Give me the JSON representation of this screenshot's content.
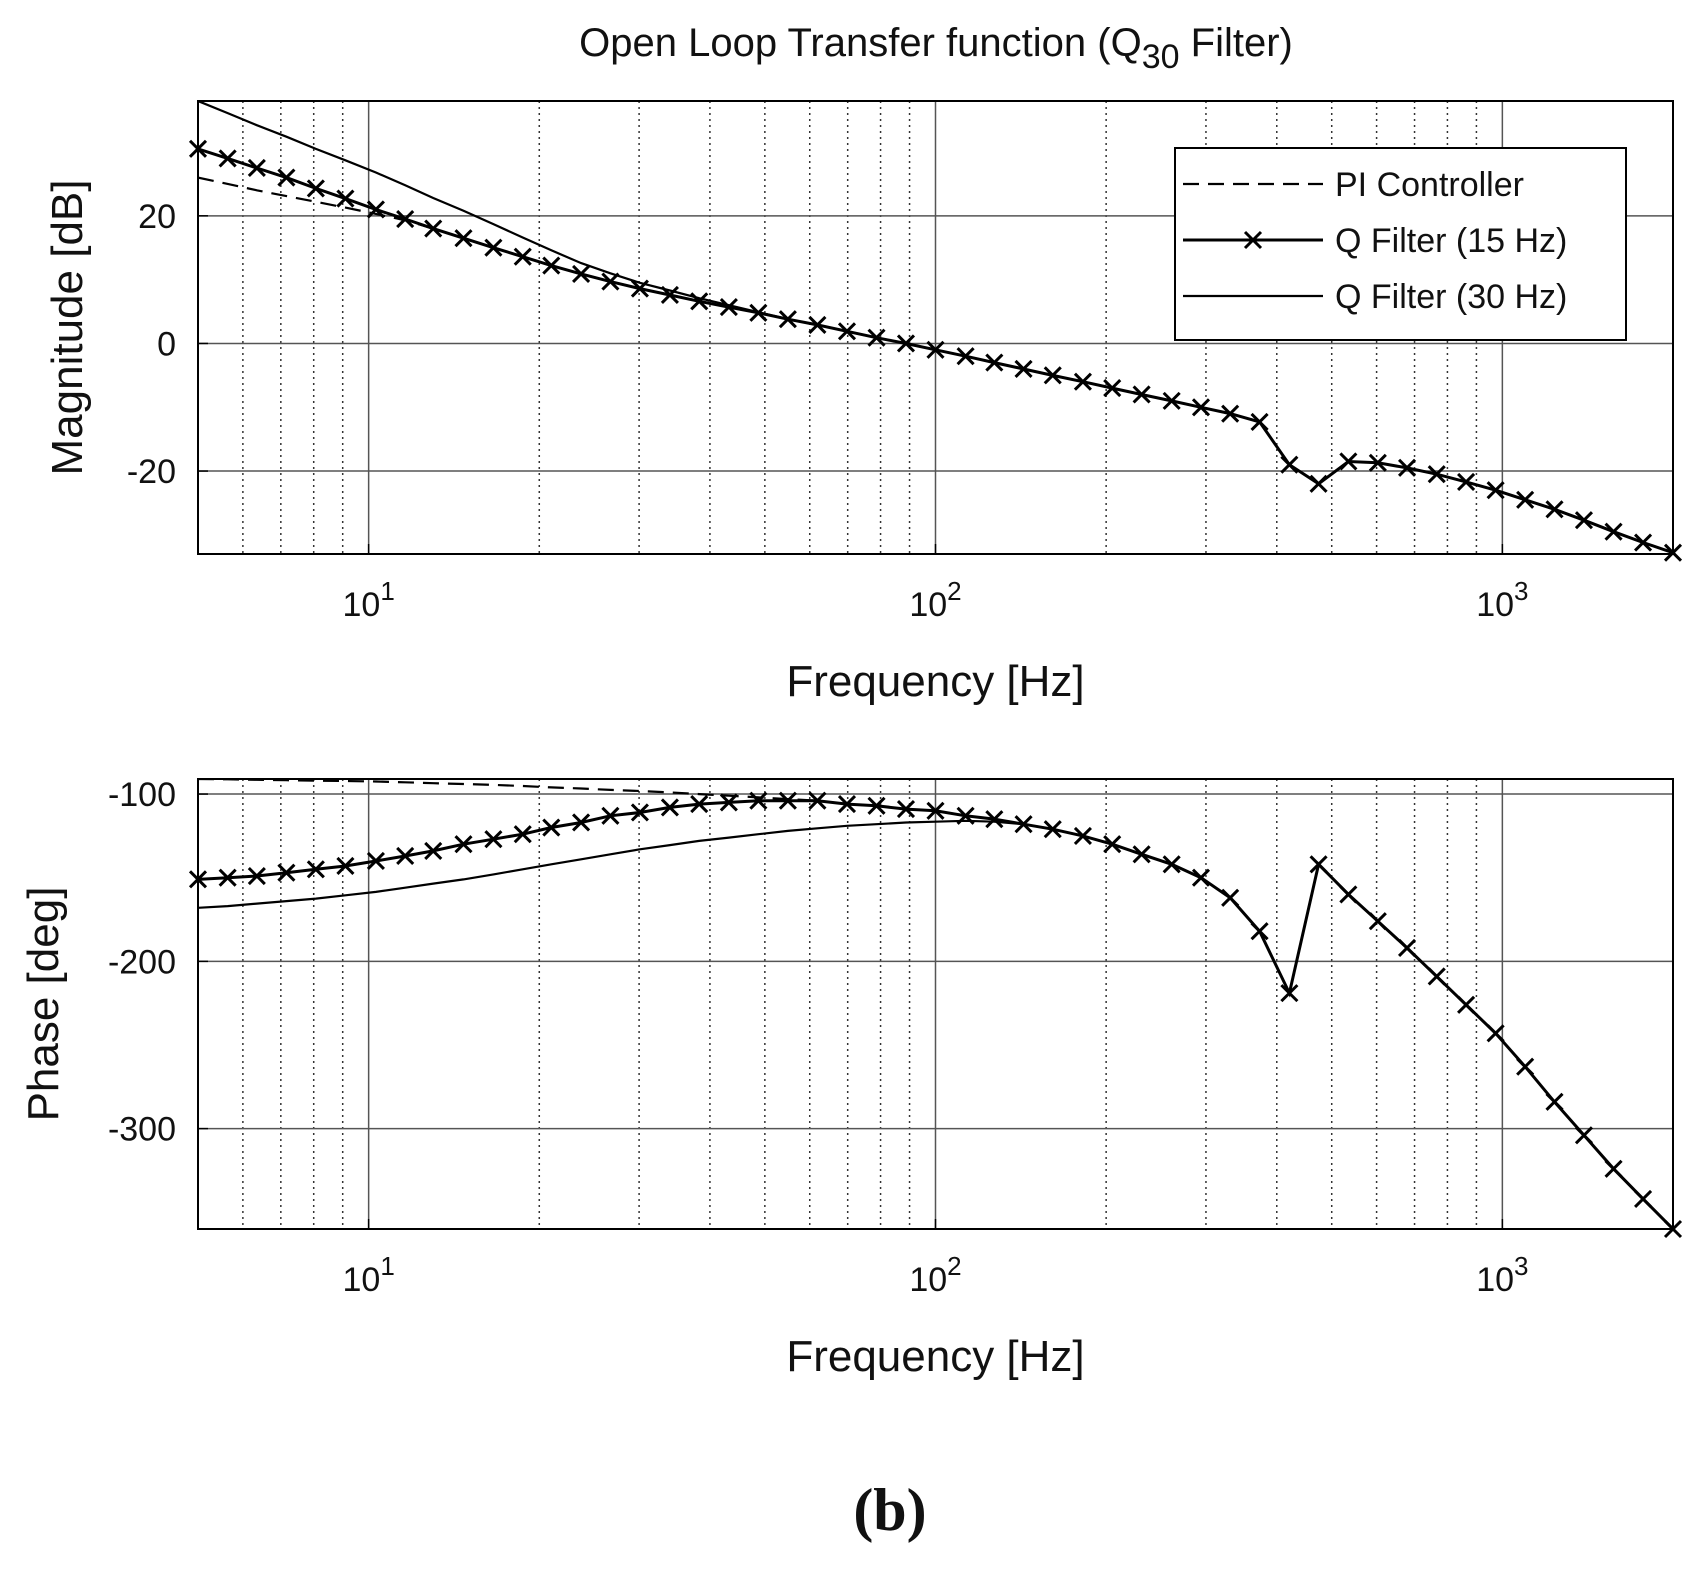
{
  "caption": "(b)",
  "chart_data": [
    {
      "type": "line",
      "title_parts": [
        "Open Loop Transfer function (Q",
        "30",
        " Filter)"
      ],
      "xlabel": "Frequency [Hz]",
      "ylabel": "Magnitude [dB]",
      "xscale": "log",
      "grid": true,
      "legend": "northeast",
      "xlim": [
        5,
        2000
      ],
      "ylim": [
        -33,
        38
      ],
      "xticks": [
        {
          "value": 10,
          "label": "10",
          "sup": "1"
        },
        {
          "value": 100,
          "label": "10",
          "sup": "2"
        },
        {
          "value": 1000,
          "label": "10",
          "sup": "3"
        }
      ],
      "xminor": [
        6,
        7,
        8,
        9,
        20,
        30,
        40,
        50,
        60,
        70,
        80,
        90,
        200,
        300,
        400,
        500,
        600,
        700,
        800,
        900
      ],
      "yticks": [
        -20,
        0,
        20
      ],
      "x": [
        5,
        5.64,
        6.35,
        7.16,
        8.07,
        9.1,
        10.3,
        11.6,
        13.0,
        14.7,
        16.6,
        18.7,
        21.0,
        23.7,
        26.7,
        30.1,
        34.0,
        38.3,
        43.2,
        48.7,
        54.9,
        61.9,
        69.8,
        78.7,
        88.7,
        100,
        113,
        127,
        143,
        161,
        182,
        205,
        231,
        261,
        294,
        331,
        373,
        421,
        474,
        535,
        603,
        679,
        766,
        863,
        973,
        1097,
        1236,
        1393,
        1571,
        1771,
        2000
      ],
      "series": [
        {
          "name": "PI Controller",
          "color": "#000000",
          "style": "dashed",
          "values": [
            26,
            25,
            24,
            23.1,
            22.2,
            21.3,
            20.3,
            19.3,
            18,
            16.5,
            15,
            13.6,
            12.2,
            10.9,
            9.7,
            8.6,
            7.6,
            6.6,
            5.7,
            4.8,
            3.8,
            2.9,
            1.9,
            0.9,
            0,
            -1,
            -2,
            -3,
            -4,
            -5,
            -6,
            -7,
            -8,
            -9,
            -10,
            -11,
            -12.3,
            -19,
            -22,
            -18.5,
            -18.7,
            -19.5,
            -20.5,
            -21.7,
            -23,
            -24.5,
            -26,
            -27.7,
            -29.5,
            -31.2,
            -32.8
          ]
        },
        {
          "name": "Q Filter (30 Hz)",
          "color": "#000000",
          "style": "solid",
          "values": [
            38,
            36.1,
            34.2,
            32.4,
            30.5,
            28.7,
            26.8,
            24.8,
            22.8,
            20.8,
            18.7,
            16.6,
            14.6,
            12.6,
            11,
            9.5,
            8.3,
            7.1,
            6,
            4.9,
            3.8,
            2.9,
            1.9,
            0.9,
            0,
            -1,
            -2,
            -3,
            -4,
            -5,
            -6,
            -7,
            -8,
            -9,
            -10,
            -11,
            -12.3,
            -19,
            -22,
            -18.5,
            -18.7,
            -19.5,
            -20.5,
            -21.7,
            -23,
            -24.5,
            -26,
            -27.7,
            -29.5,
            -31.2,
            -32.8
          ]
        },
        {
          "name": "Q Filter (15 Hz)",
          "color": "#000000",
          "style": "solid",
          "marker": "x",
          "values": [
            30.5,
            29,
            27.5,
            26,
            24.3,
            22.7,
            21,
            19.5,
            18,
            16.5,
            15,
            13.6,
            12.2,
            10.9,
            9.7,
            8.6,
            7.6,
            6.6,
            5.7,
            4.8,
            3.8,
            2.9,
            1.9,
            0.9,
            0,
            -1,
            -2,
            -3,
            -4,
            -5,
            -6,
            -7,
            -8,
            -9,
            -10,
            -11,
            -12.3,
            -19,
            -22,
            -18.5,
            -18.7,
            -19.5,
            -20.5,
            -21.7,
            -23,
            -24.5,
            -26,
            -27.7,
            -29.5,
            -31.2,
            -32.8
          ]
        }
      ]
    },
    {
      "type": "line",
      "xlabel": "Frequency [Hz]",
      "ylabel": "Phase [deg]",
      "xscale": "log",
      "grid": true,
      "xlim": [
        5,
        2000
      ],
      "ylim": [
        -360,
        -91
      ],
      "xticks": [
        {
          "value": 10,
          "label": "10",
          "sup": "1"
        },
        {
          "value": 100,
          "label": "10",
          "sup": "2"
        },
        {
          "value": 1000,
          "label": "10",
          "sup": "3"
        }
      ],
      "xminor": [
        6,
        7,
        8,
        9,
        20,
        30,
        40,
        50,
        60,
        70,
        80,
        90,
        200,
        300,
        400,
        500,
        600,
        700,
        800,
        900
      ],
      "yticks": [
        -300,
        -200,
        -100
      ],
      "x": [
        5,
        5.64,
        6.35,
        7.16,
        8.07,
        9.1,
        10.3,
        11.6,
        13.0,
        14.7,
        16.6,
        18.7,
        21.0,
        23.7,
        26.7,
        30.1,
        34.0,
        38.3,
        43.2,
        48.7,
        54.9,
        61.9,
        69.8,
        78.7,
        88.7,
        100,
        113,
        127,
        143,
        161,
        182,
        205,
        231,
        261,
        294,
        331,
        373,
        421,
        474,
        535,
        603,
        679,
        766,
        863,
        973,
        1097,
        1236,
        1393,
        1571,
        1771,
        2000
      ],
      "series": [
        {
          "name": "PI Controller",
          "color": "#000000",
          "style": "dashed",
          "values": [
            -91,
            -91.2,
            -91.5,
            -91.7,
            -92,
            -92.2,
            -92.5,
            -93,
            -93.5,
            -94,
            -94.5,
            -95.2,
            -96,
            -96.7,
            -97.5,
            -98.2,
            -99,
            -100,
            -101,
            -102,
            -103,
            -104,
            -106,
            -107,
            -109,
            -110,
            -113,
            -115,
            -118,
            -121,
            -125,
            -130,
            -136,
            -142,
            -150,
            -162,
            -182,
            -219,
            -142,
            -160,
            -176,
            -192,
            -209,
            -226,
            -243,
            -263,
            -284,
            -304,
            -324,
            -342,
            -360
          ]
        },
        {
          "name": "Q Filter (30 Hz)",
          "color": "#000000",
          "style": "solid",
          "values": [
            -168,
            -167,
            -165.5,
            -164,
            -162.5,
            -160.5,
            -158.5,
            -156,
            -153.5,
            -151,
            -148,
            -145,
            -142,
            -139,
            -136,
            -133,
            -130.5,
            -128,
            -126,
            -124,
            -122,
            -120.5,
            -119,
            -118,
            -117,
            -116.5,
            -116,
            -116.5,
            -118,
            -121,
            -125,
            -130,
            -136,
            -142,
            -150,
            -162,
            -182,
            -219,
            -142,
            -160,
            -176,
            -192,
            -209,
            -226,
            -243,
            -263,
            -284,
            -304,
            -324,
            -342,
            -360
          ]
        },
        {
          "name": "Q Filter (15 Hz)",
          "color": "#000000",
          "style": "solid",
          "marker": "x",
          "values": [
            -151,
            -150,
            -149,
            -147,
            -145,
            -143,
            -140,
            -137,
            -134,
            -130,
            -127,
            -124,
            -120,
            -117,
            -113,
            -111,
            -108,
            -106,
            -105,
            -104,
            -104,
            -104,
            -106,
            -107,
            -109,
            -110,
            -113,
            -115,
            -118,
            -121,
            -125,
            -130,
            -136,
            -142,
            -150,
            -162,
            -182,
            -219,
            -142,
            -160,
            -176,
            -192,
            -209,
            -226,
            -243,
            -263,
            -284,
            -304,
            -324,
            -342,
            -360
          ]
        }
      ]
    }
  ]
}
